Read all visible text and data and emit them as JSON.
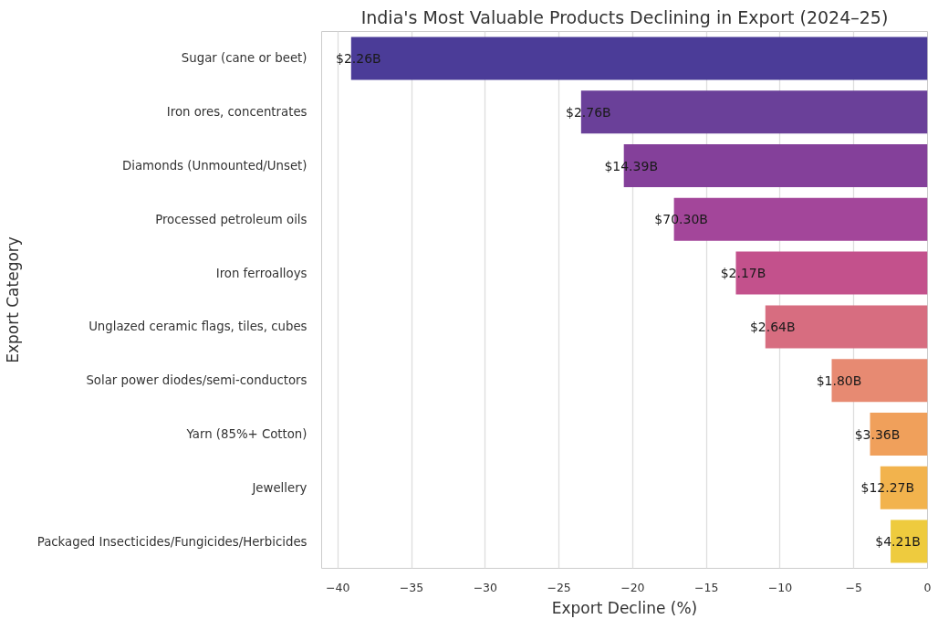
{
  "chart_data": {
    "type": "bar",
    "orientation": "horizontal",
    "title": "India's Most Valuable Products Declining in Export (2024–25)",
    "xlabel": "Export Decline (%)",
    "ylabel": "Export Category",
    "categories": [
      "Sugar (cane or beet)",
      "Iron ores, concentrates",
      "Diamonds (Unmounted/Unset)",
      "Processed petroleum oils",
      "Iron ferroalloys",
      "Unglazed ceramic flags, tiles, cubes",
      "Solar power diodes/semi-conductors",
      "Yarn (85%+ Cotton)",
      "Jewellery",
      "Packaged Insecticides/Fungicides/Herbicides"
    ],
    "values": [
      -39.1,
      -23.5,
      -20.6,
      -17.2,
      -13.0,
      -11.0,
      -6.5,
      -3.9,
      -3.2,
      -2.5
    ],
    "colors": [
      "#4b3c98",
      "#6a4099",
      "#84409a",
      "#a3469a",
      "#c3518c",
      "#d76d80",
      "#e78a72",
      "#f0a05b",
      "#f2b34d",
      "#eecb3e"
    ],
    "annotations": [
      {
        "text": "$2.26B",
        "x": -39.1,
        "y": "Sugar (cane or beet)"
      },
      {
        "text": "$2.76B",
        "x": -23.5,
        "y": "Iron ores, concentrates"
      },
      {
        "text": "$14.39B",
        "x": -20.6,
        "y": "Diamonds (Unmounted/Unset)"
      },
      {
        "text": "$70.30B",
        "x": -17.2,
        "y": "Processed petroleum oils"
      },
      {
        "text": "$2.17B",
        "x": -13.0,
        "y": "Iron ferroalloys"
      },
      {
        "text": "$2.64B",
        "x": -11.0,
        "y": "Unglazed ceramic flags, tiles, cubes"
      },
      {
        "text": "$1.80B",
        "x": -6.5,
        "y": "Solar power diodes/semi-conductors"
      },
      {
        "text": "$3.36B",
        "x": -3.9,
        "y": "Yarn (85%+ Cotton)"
      },
      {
        "text": "$12.27B",
        "x": -3.2,
        "y": "Jewellery"
      },
      {
        "text": "$4.21B",
        "x": -2.5,
        "y": "Packaged Insecticides/Fungicides/Herbicides"
      }
    ],
    "xlim": [
      -41.1,
      0
    ],
    "xticks": [
      {
        "value": -40,
        "label": "−40"
      },
      {
        "value": -35,
        "label": "−35"
      },
      {
        "value": -30,
        "label": "−30"
      },
      {
        "value": -25,
        "label": "−25"
      },
      {
        "value": -20,
        "label": "−20"
      },
      {
        "value": -15,
        "label": "−15"
      },
      {
        "value": -10,
        "label": "−10"
      },
      {
        "value": -5,
        "label": "−5"
      },
      0
    ],
    "grid": "x"
  }
}
